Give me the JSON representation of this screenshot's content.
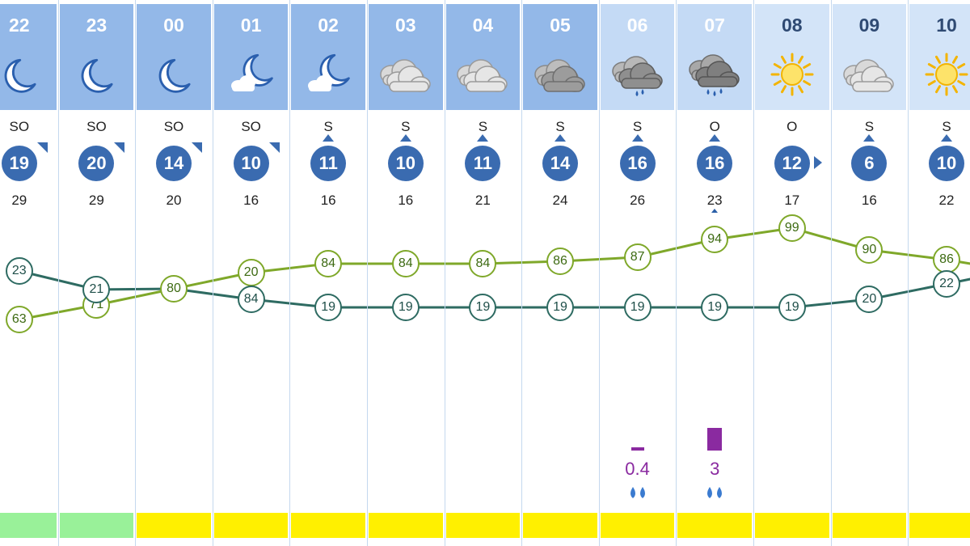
{
  "forecast": {
    "colors": {
      "header_night": "#93b8e8",
      "header_day": "#d3e4f8",
      "header_light": "#c4daf5",
      "wind_circle": "#3a6bb0",
      "humidity_line": "#7fa82a",
      "temperature_line": "#2e6b62",
      "precip": "#8a2aa0",
      "band_green": "#99f199",
      "band_yellow": "#fff000"
    },
    "hours": [
      {
        "hour": "22",
        "icon": "moon-icon",
        "wind_dir": "SO",
        "wind": "19",
        "arrow": "ne",
        "gust": "29",
        "humidity": "63",
        "temperature": "23",
        "band": "green"
      },
      {
        "hour": "23",
        "icon": "moon-icon",
        "wind_dir": "SO",
        "wind": "20",
        "arrow": "ne",
        "gust": "29",
        "humidity": "71",
        "temperature": "21",
        "band": "green"
      },
      {
        "hour": "00",
        "icon": "moon-icon",
        "wind_dir": "SO",
        "wind": "14",
        "arrow": "ne",
        "gust": "20",
        "humidity": "80",
        "temperature": "",
        "band": "yellow"
      },
      {
        "hour": "01",
        "icon": "moon-cloud-icon",
        "wind_dir": "SO",
        "wind": "10",
        "arrow": "ne",
        "gust": "16",
        "humidity": "20",
        "temperature": "84",
        "band": "yellow"
      },
      {
        "hour": "02",
        "icon": "moon-cloud-icon",
        "wind_dir": "S",
        "wind": "11",
        "arrow": "n",
        "gust": "16",
        "humidity": "84",
        "temperature": "19",
        "band": "yellow"
      },
      {
        "hour": "03",
        "icon": "cloud-icon",
        "wind_dir": "S",
        "wind": "10",
        "arrow": "n",
        "gust": "16",
        "humidity": "84",
        "temperature": "19",
        "band": "yellow"
      },
      {
        "hour": "04",
        "icon": "cloud-icon",
        "wind_dir": "S",
        "wind": "11",
        "arrow": "n",
        "gust": "21",
        "humidity": "84",
        "temperature": "19",
        "band": "yellow"
      },
      {
        "hour": "05",
        "icon": "dark-cloud-icon",
        "wind_dir": "S",
        "wind": "14",
        "arrow": "n",
        "gust": "24",
        "humidity": "86",
        "temperature": "19",
        "band": "yellow"
      },
      {
        "hour": "06",
        "icon": "rain-cloud-icon",
        "wind_dir": "S",
        "wind": "16",
        "arrow": "n",
        "gust": "26",
        "humidity": "87",
        "temperature": "19",
        "precip": "0.4",
        "precip_bar": 0.4,
        "band": "yellow"
      },
      {
        "hour": "07",
        "icon": "heavy-rain-cloud-icon",
        "wind_dir": "O",
        "wind": "16",
        "arrow": "n",
        "gust": "23",
        "humidity": "94",
        "temperature": "19",
        "precip": "3",
        "precip_bar": 3,
        "band": "yellow"
      },
      {
        "hour": "08",
        "icon": "sun-icon",
        "wind_dir": "O",
        "wind": "12",
        "arrow": "e",
        "gust": "17",
        "humidity": "99",
        "temperature": "19",
        "band": "yellow"
      },
      {
        "hour": "09",
        "icon": "cloud-icon",
        "wind_dir": "S",
        "wind": "6",
        "arrow": "n",
        "gust": "16",
        "humidity": "90",
        "temperature": "20",
        "band": "yellow"
      },
      {
        "hour": "10",
        "icon": "sun-icon",
        "wind_dir": "S",
        "wind": "10",
        "arrow": "n",
        "gust": "22",
        "humidity": "86",
        "temperature": "22",
        "band": "yellow"
      }
    ]
  }
}
